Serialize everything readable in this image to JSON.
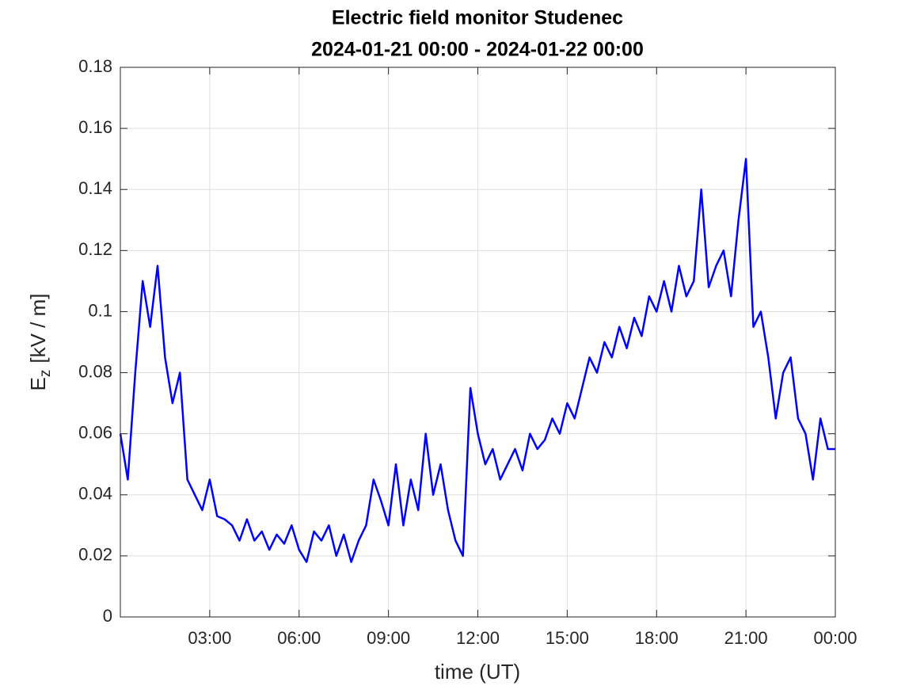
{
  "chart_data": {
    "type": "line",
    "title": "Electric field monitor Studenec",
    "subtitle": "2024-01-21 00:00 - 2024-01-22 00:00",
    "xlabel": "time (UT)",
    "ylabel": [
      "E",
      "z",
      "[kV / m]"
    ],
    "color": "#0000ff",
    "grid": true,
    "xlim": [
      0,
      24
    ],
    "ylim": [
      0,
      0.18
    ],
    "xticks": [
      {
        "value": 3,
        "label": "03:00"
      },
      {
        "value": 6,
        "label": "06:00"
      },
      {
        "value": 9,
        "label": "09:00"
      },
      {
        "value": 12,
        "label": "12:00"
      },
      {
        "value": 15,
        "label": "15:00"
      },
      {
        "value": 18,
        "label": "18:00"
      },
      {
        "value": 21,
        "label": "21:00"
      },
      {
        "value": 24,
        "label": "00:00"
      }
    ],
    "yticks": [
      0,
      0.02,
      0.04,
      0.06,
      0.08,
      0.1,
      0.12,
      0.14,
      0.16,
      0.18
    ],
    "x": [
      0,
      0.25,
      0.5,
      0.75,
      1,
      1.25,
      1.5,
      1.75,
      2,
      2.25,
      2.5,
      2.75,
      3,
      3.25,
      3.5,
      3.75,
      4,
      4.25,
      4.5,
      4.75,
      5,
      5.25,
      5.5,
      5.75,
      6,
      6.25,
      6.5,
      6.75,
      7,
      7.25,
      7.5,
      7.75,
      8,
      8.25,
      8.5,
      8.75,
      9,
      9.25,
      9.5,
      9.75,
      10,
      10.25,
      10.5,
      10.75,
      11,
      11.25,
      11.5,
      11.75,
      12,
      12.25,
      12.5,
      12.75,
      13,
      13.25,
      13.5,
      13.75,
      14,
      14.25,
      14.5,
      14.75,
      15,
      15.25,
      15.5,
      15.75,
      16,
      16.25,
      16.5,
      16.75,
      17,
      17.25,
      17.5,
      17.75,
      18,
      18.25,
      18.5,
      18.75,
      19,
      19.25,
      19.5,
      19.75,
      20,
      20.25,
      20.5,
      20.75,
      21,
      21.25,
      21.5,
      21.75,
      22,
      22.25,
      22.5,
      22.75,
      23,
      23.25,
      23.5,
      23.75,
      24
    ],
    "values": [
      0.06,
      0.045,
      0.08,
      0.11,
      0.095,
      0.115,
      0.085,
      0.07,
      0.08,
      0.045,
      0.04,
      0.035,
      0.045,
      0.033,
      0.032,
      0.03,
      0.025,
      0.032,
      0.025,
      0.028,
      0.022,
      0.027,
      0.024,
      0.03,
      0.022,
      0.018,
      0.028,
      0.025,
      0.03,
      0.02,
      0.027,
      0.018,
      0.025,
      0.03,
      0.045,
      0.038,
      0.03,
      0.05,
      0.03,
      0.045,
      0.035,
      0.06,
      0.04,
      0.05,
      0.035,
      0.025,
      0.02,
      0.075,
      0.06,
      0.05,
      0.055,
      0.045,
      0.05,
      0.055,
      0.048,
      0.06,
      0.055,
      0.058,
      0.065,
      0.06,
      0.07,
      0.065,
      0.075,
      0.085,
      0.08,
      0.09,
      0.085,
      0.095,
      0.088,
      0.098,
      0.092,
      0.105,
      0.1,
      0.11,
      0.1,
      0.115,
      0.105,
      0.11,
      0.14,
      0.108,
      0.115,
      0.12,
      0.105,
      0.13,
      0.15,
      0.095,
      0.1,
      0.085,
      0.065,
      0.08,
      0.085,
      0.065,
      0.06,
      0.045,
      0.065,
      0.055,
      0.055
    ]
  }
}
